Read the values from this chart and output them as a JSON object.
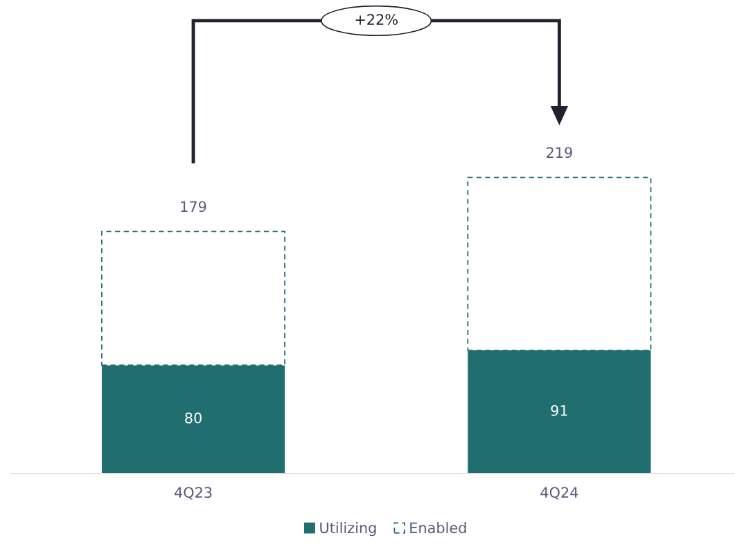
{
  "chart_data": {
    "type": "bar",
    "stacked": true,
    "categories": [
      "4Q23",
      "4Q24"
    ],
    "series": [
      {
        "name": "Utilizing",
        "color": "#206e70",
        "values": [
          80,
          91
        ],
        "value_labels": [
          "80",
          "91"
        ]
      },
      {
        "name": "Enabled",
        "color": "#206e70",
        "line_style": "dashed",
        "values": [
          99,
          128
        ],
        "value_labels": [
          null,
          null
        ]
      }
    ],
    "totals": [
      "179",
      "219"
    ],
    "annotations": [
      "+22%"
    ],
    "legend": "bottom",
    "grid": false
  }
}
